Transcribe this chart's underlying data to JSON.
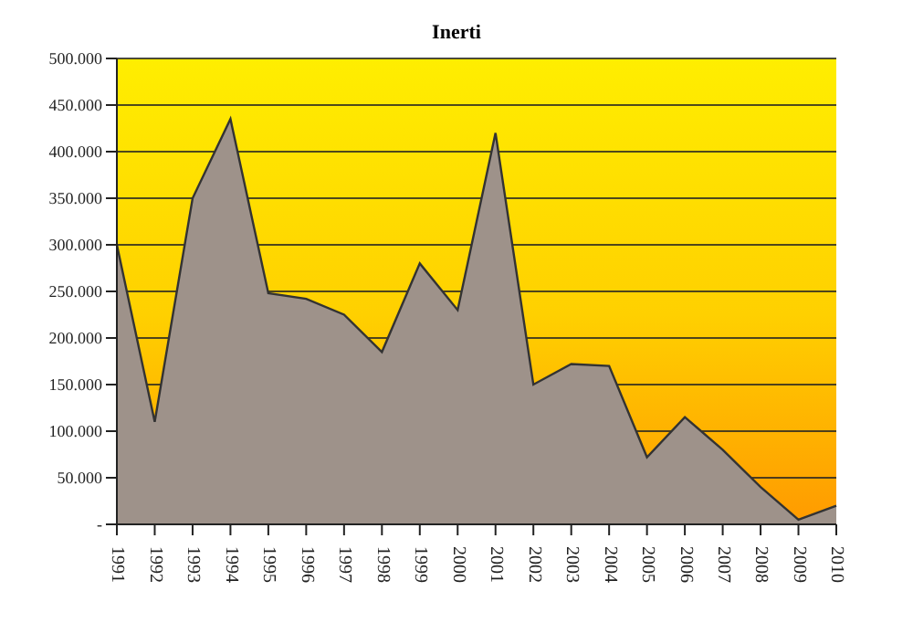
{
  "chart_data": {
    "type": "area",
    "title": "Inerti",
    "categories": [
      "1991",
      "1992",
      "1993",
      "1994",
      "1995",
      "1996",
      "1997",
      "1998",
      "1999",
      "2000",
      "2001",
      "2002",
      "2003",
      "2004",
      "2005",
      "2006",
      "2007",
      "2008",
      "2009",
      "2010"
    ],
    "series": [
      {
        "color": "#9e928a",
        "values": [
          300000,
          110000,
          350000,
          435000,
          248000,
          242000,
          225000,
          185000,
          280000,
          230000,
          420000,
          150000,
          172000,
          170000,
          72000,
          115000,
          80000,
          40000,
          5000,
          20000
        ]
      }
    ],
    "ylim": [
      0,
      500000
    ],
    "yticks": [
      {
        "value": 0,
        "label": "-"
      },
      {
        "value": 50000,
        "label": "50.000"
      },
      {
        "value": 100000,
        "label": "100.000"
      },
      {
        "value": 150000,
        "label": "150.000"
      },
      {
        "value": 200000,
        "label": "200.000"
      },
      {
        "value": 250000,
        "label": "250.000"
      },
      {
        "value": 300000,
        "label": "300.000"
      },
      {
        "value": 350000,
        "label": "350.000"
      },
      {
        "value": 400000,
        "label": "400.000"
      },
      {
        "value": 450000,
        "label": "450.000"
      },
      {
        "value": 500000,
        "label": "500.000"
      }
    ],
    "grid": "y"
  }
}
